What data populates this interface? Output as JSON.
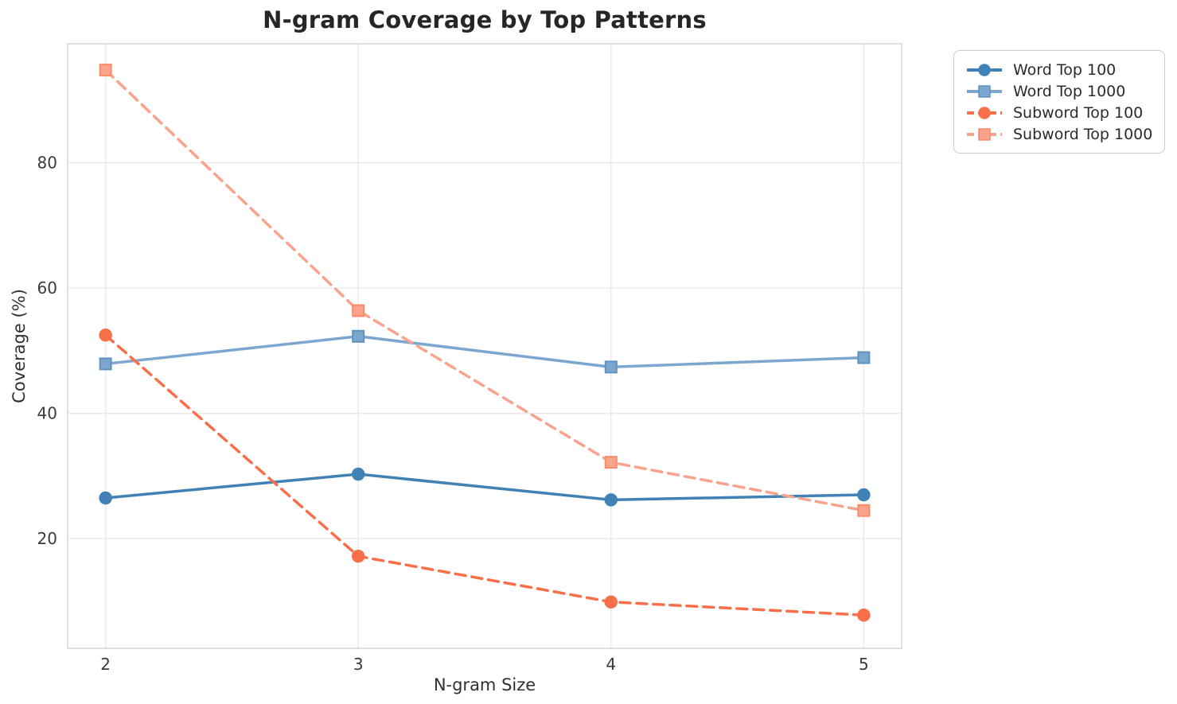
{
  "title": "N-gram Coverage by Top Patterns",
  "styling": {
    "grid_color": "#e8e8e8",
    "spine_color": "#d5d5d5",
    "tick_label_color": "#3a3a3a",
    "title_color": "#262626"
  },
  "legend": {
    "position": "outside-top-right",
    "entries": [
      "Word Top 100",
      "Word Top 1000",
      "Subword Top 100",
      "Subword Top 1000"
    ]
  },
  "chart_data": {
    "type": "line",
    "title": "N-gram Coverage by Top Patterns",
    "xlabel": "N-gram Size",
    "ylabel": "Coverage (%)",
    "x": [
      2,
      3,
      4,
      5
    ],
    "xticks": [
      2,
      3,
      4,
      5
    ],
    "yticks": [
      20,
      40,
      60,
      80
    ],
    "xlim": [
      1.85,
      5.15
    ],
    "ylim": [
      2.5,
      99
    ],
    "grid": true,
    "legend_position": "outside-top-right",
    "series": [
      {
        "name": "Word Top 100",
        "values": [
          26.5,
          30.3,
          26.2,
          27.0
        ],
        "color": "#4181b5",
        "marker": "circle",
        "marker_edge": "#4181b5",
        "line_style": "solid"
      },
      {
        "name": "Word Top 1000",
        "values": [
          47.9,
          52.3,
          47.4,
          48.9
        ],
        "color": "#7ba7cf",
        "marker": "square",
        "marker_edge": "#5e92c0",
        "line_style": "solid"
      },
      {
        "name": "Subword Top 100",
        "values": [
          52.5,
          17.2,
          9.9,
          7.8
        ],
        "color": "#f96f4a",
        "marker": "circle",
        "marker_edge": "#f96f4a",
        "line_style": "dashed"
      },
      {
        "name": "Subword Top 1000",
        "values": [
          94.8,
          56.4,
          32.2,
          24.5
        ],
        "color": "#faa38c",
        "marker": "square",
        "marker_edge": "#f88b68",
        "line_style": "dashed"
      }
    ]
  }
}
